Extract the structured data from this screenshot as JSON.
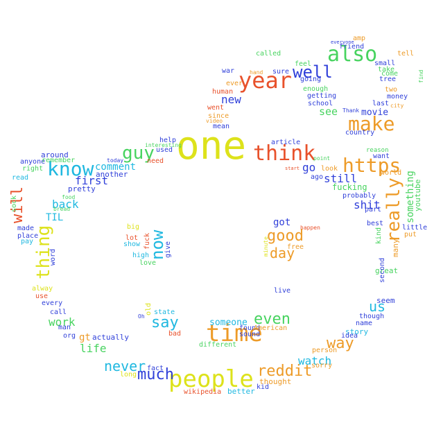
{
  "words": [
    {
      "text": "one",
      "color": "#dde21b"
    },
    {
      "text": "people",
      "color": "#dde21b"
    },
    {
      "text": "time",
      "color": "#ed9b28"
    },
    {
      "text": "year",
      "color": "#e8512b"
    },
    {
      "text": "think",
      "color": "#e8512b"
    },
    {
      "text": "also",
      "color": "#47d35f"
    },
    {
      "text": "make",
      "color": "#ed9b28"
    },
    {
      "text": "https",
      "color": "#ed9b28"
    },
    {
      "text": "know",
      "color": "#1fb8e0"
    },
    {
      "text": "well",
      "color": "#2f3fd9"
    },
    {
      "text": "guy",
      "color": "#47d35f"
    },
    {
      "text": "really",
      "color": "#ed9b28"
    },
    {
      "text": "reddit",
      "color": "#ed9b28"
    },
    {
      "text": "thing",
      "color": "#dde21b"
    },
    {
      "text": "now",
      "color": "#1fb8e0"
    },
    {
      "text": "say",
      "color": "#1fb8e0"
    },
    {
      "text": "much",
      "color": "#2f3fd9"
    },
    {
      "text": "even",
      "color": "#47d35f"
    },
    {
      "text": "will",
      "color": "#e8512b"
    },
    {
      "text": "good",
      "color": "#ed9b28"
    },
    {
      "text": "way",
      "color": "#ed9b28"
    },
    {
      "text": "never",
      "color": "#1fb8e0"
    },
    {
      "text": "us",
      "color": "#1fb8e0"
    },
    {
      "text": "day",
      "color": "#ed9b28"
    },
    {
      "text": "still",
      "color": "#2f3fd9"
    },
    {
      "text": "go",
      "color": "#2f3fd9"
    },
    {
      "text": "watch",
      "color": "#1fb8e0"
    },
    {
      "text": "shit",
      "color": "#2f3fd9"
    },
    {
      "text": "back",
      "color": "#1fb8e0"
    },
    {
      "text": "life",
      "color": "#47d35f"
    },
    {
      "text": "work",
      "color": "#47d35f"
    },
    {
      "text": "first",
      "color": "#2f3fd9"
    },
    {
      "text": "comment",
      "color": "#1fb8e0"
    },
    {
      "text": "someone",
      "color": "#1fb8e0"
    },
    {
      "text": "see",
      "color": "#47d35f"
    },
    {
      "text": "new",
      "color": "#2f3fd9"
    },
    {
      "text": "something",
      "color": "#47d35f"
    },
    {
      "text": "got",
      "color": "#2f3fd9"
    },
    {
      "text": "gt",
      "color": "#ed9b28"
    },
    {
      "text": "TIL",
      "color": "#1fb8e0"
    },
    {
      "text": "movie",
      "color": "#2f3fd9"
    },
    {
      "text": "youtube",
      "color": "#47d35f"
    },
    {
      "text": "fucking",
      "color": "#47d35f"
    },
    {
      "text": "actually",
      "color": "#2f3fd9"
    },
    {
      "text": "thought",
      "color": "#ed9b28"
    },
    {
      "text": "better",
      "color": "#1fb8e0"
    },
    {
      "text": "wikipedia",
      "color": "#e8512b"
    },
    {
      "text": "story",
      "color": "#1fb8e0"
    },
    {
      "text": "seem",
      "color": "#2f3fd9"
    },
    {
      "text": "great",
      "color": "#47d35f"
    },
    {
      "text": "many",
      "color": "#ed9b28"
    },
    {
      "text": "pretty",
      "color": "#2f3fd9"
    },
    {
      "text": "around",
      "color": "#2f3fd9"
    },
    {
      "text": "another",
      "color": "#2f3fd9"
    },
    {
      "text": "lot",
      "color": "#e8512b"
    },
    {
      "text": "show",
      "color": "#1fb8e0"
    },
    {
      "text": "high",
      "color": "#1fb8e0"
    },
    {
      "text": "love",
      "color": "#47d35f"
    },
    {
      "text": "fuck",
      "color": "#e8512b"
    },
    {
      "text": "give",
      "color": "#2f3fd9"
    },
    {
      "text": "big",
      "color": "#dde21b"
    },
    {
      "text": "fact",
      "color": "#2f3fd9"
    },
    {
      "text": "long",
      "color": "#dde21b"
    },
    {
      "text": "bad",
      "color": "#e8512b"
    },
    {
      "text": "state",
      "color": "#1fb8e0"
    },
    {
      "text": "old",
      "color": "#dde21b"
    },
    {
      "text": "right",
      "color": "#47d35f"
    },
    {
      "text": "anyone",
      "color": "#2f3fd9"
    },
    {
      "text": "remember",
      "color": "#47d35f"
    },
    {
      "text": "read",
      "color": "#1fb8e0"
    },
    {
      "text": "sock",
      "color": "#47d35f"
    },
    {
      "text": "made",
      "color": "#2f3fd9"
    },
    {
      "text": "place",
      "color": "#2f3fd9"
    },
    {
      "text": "pay",
      "color": "#1fb8e0"
    },
    {
      "text": "word",
      "color": "#2f3fd9"
    },
    {
      "text": "alway",
      "color": "#dde21b"
    },
    {
      "text": "use",
      "color": "#e8512b"
    },
    {
      "text": "every",
      "color": "#2f3fd9"
    },
    {
      "text": "call",
      "color": "#2f3fd9"
    },
    {
      "text": "man",
      "color": "#2f3fd9"
    },
    {
      "text": "org",
      "color": "#2f3fd9"
    },
    {
      "text": "food",
      "color": "#47d35f"
    },
    {
      "text": "bread",
      "color": "#47d35f"
    },
    {
      "text": "mean",
      "color": "#2f3fd9"
    },
    {
      "text": "since",
      "color": "#ed9b28"
    },
    {
      "text": "went",
      "color": "#e8512b"
    },
    {
      "text": "human",
      "color": "#e8512b"
    },
    {
      "text": "ever",
      "color": "#ed9b28"
    },
    {
      "text": "war",
      "color": "#2f3fd9"
    },
    {
      "text": "called",
      "color": "#47d35f"
    },
    {
      "text": "hand",
      "color": "#ed9b28"
    },
    {
      "text": "sure",
      "color": "#2f3fd9"
    },
    {
      "text": "feel",
      "color": "#47d35f"
    },
    {
      "text": "going",
      "color": "#2f3fd9"
    },
    {
      "text": "enough",
      "color": "#47d35f"
    },
    {
      "text": "getting",
      "color": "#2f3fd9"
    },
    {
      "text": "school",
      "color": "#2f3fd9"
    },
    {
      "text": "friend",
      "color": "#2f3fd9"
    },
    {
      "text": "amp",
      "color": "#ed9b28"
    },
    {
      "text": "everyone",
      "color": "#2f3fd9"
    },
    {
      "text": "small",
      "color": "#2f3fd9"
    },
    {
      "text": "tell",
      "color": "#ed9b28"
    },
    {
      "text": "come",
      "color": "#47d35f"
    },
    {
      "text": "take",
      "color": "#47d35f"
    },
    {
      "text": "tree",
      "color": "#2f3fd9"
    },
    {
      "text": "two",
      "color": "#ed9b28"
    },
    {
      "text": "money",
      "color": "#2f3fd9"
    },
    {
      "text": "last",
      "color": "#2f3fd9"
    },
    {
      "text": "city",
      "color": "#ed9b28"
    },
    {
      "text": "find",
      "color": "#47d35f"
    },
    {
      "text": "Thank",
      "color": "#2f3fd9"
    },
    {
      "text": "help",
      "color": "#2f3fd9"
    },
    {
      "text": "used",
      "color": "#2f3fd9"
    },
    {
      "text": "need",
      "color": "#e8512b"
    },
    {
      "text": "interesting",
      "color": "#47d35f"
    },
    {
      "text": "article",
      "color": "#2f3fd9"
    },
    {
      "text": "look",
      "color": "#ed9b28"
    },
    {
      "text": "ago",
      "color": "#2f3fd9"
    },
    {
      "text": "point",
      "color": "#47d35f"
    },
    {
      "text": "probably",
      "color": "#2f3fd9"
    },
    {
      "text": "part",
      "color": "#2f3fd9"
    },
    {
      "text": "want",
      "color": "#2f3fd9"
    },
    {
      "text": "world",
      "color": "#ed9b28"
    },
    {
      "text": "reason",
      "color": "#47d35f"
    },
    {
      "text": "best",
      "color": "#2f3fd9"
    },
    {
      "text": "kind",
      "color": "#47d35f"
    },
    {
      "text": "little",
      "color": "#2f3fd9"
    },
    {
      "text": "put",
      "color": "#ed9b28"
    },
    {
      "text": "second",
      "color": "#2f3fd9"
    },
    {
      "text": "live",
      "color": "#2f3fd9"
    },
    {
      "text": "though",
      "color": "#2f3fd9"
    },
    {
      "text": "name",
      "color": "#2f3fd9"
    },
    {
      "text": "idea",
      "color": "#2f3fd9"
    },
    {
      "text": "person",
      "color": "#ed9b28"
    },
    {
      "text": "sorry",
      "color": "#ed9b28"
    },
    {
      "text": "free",
      "color": "#ed9b28"
    },
    {
      "text": "happen",
      "color": "#e8512b"
    },
    {
      "text": "minute",
      "color": "#dde21b"
    },
    {
      "text": "sound",
      "color": "#2f3fd9"
    },
    {
      "text": "found",
      "color": "#2f3fd9"
    },
    {
      "text": "American",
      "color": "#ed9b28"
    },
    {
      "text": "different",
      "color": "#47d35f"
    },
    {
      "text": "kid",
      "color": "#2f3fd9"
    },
    {
      "text": "country",
      "color": "#2f3fd9"
    },
    {
      "text": "video",
      "color": "#ed9b28"
    },
    {
      "text": "today",
      "color": "#2f3fd9"
    },
    {
      "text": "start",
      "color": "#e8512b"
    },
    {
      "text": "Oh",
      "color": "#2f3fd9"
    }
  ]
}
